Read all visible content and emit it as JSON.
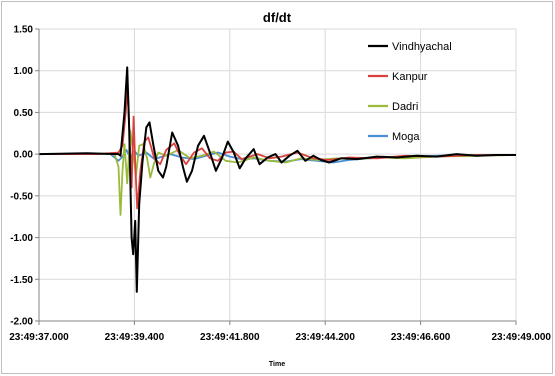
{
  "chart_data": {
    "type": "line",
    "title": "df/dt",
    "xlabel": "Time",
    "ylabel": "",
    "ylim": [
      -2.0,
      1.5
    ],
    "y_ticks": [
      "1.50",
      "1.00",
      "0.50",
      "0.00",
      "-0.50",
      "-1.00",
      "-1.50",
      "-2.00"
    ],
    "y_tick_values": [
      1.5,
      1.0,
      0.5,
      0.0,
      -0.5,
      -1.0,
      -1.5,
      -2.0
    ],
    "x_ticks": [
      "23:49:37.000",
      "23:49:39.400",
      "23:49:41.800",
      "23:49:44.200",
      "23:49:46.600",
      "23:49:49.000"
    ],
    "x_tick_values": [
      0,
      2.4,
      4.8,
      7.2,
      9.6,
      12.0
    ],
    "xlim": [
      0,
      12.0
    ],
    "grid": "horizontal",
    "legend_position": "right",
    "series": [
      {
        "name": "Vindhyachal",
        "color": "#000000",
        "points": [
          [
            0,
            0
          ],
          [
            1.2,
            0.01
          ],
          [
            2.0,
            0
          ],
          [
            2.05,
            -0.02
          ],
          [
            2.15,
            0.5
          ],
          [
            2.22,
            1.04
          ],
          [
            2.27,
            0.3
          ],
          [
            2.33,
            -1.0
          ],
          [
            2.37,
            -1.2
          ],
          [
            2.42,
            -0.8
          ],
          [
            2.46,
            -1.65
          ],
          [
            2.52,
            -0.6
          ],
          [
            2.6,
            -0.1
          ],
          [
            2.7,
            0.32
          ],
          [
            2.78,
            0.38
          ],
          [
            2.88,
            0.1
          ],
          [
            3.0,
            -0.2
          ],
          [
            3.12,
            -0.28
          ],
          [
            3.2,
            -0.15
          ],
          [
            3.35,
            0.26
          ],
          [
            3.5,
            0.1
          ],
          [
            3.62,
            -0.15
          ],
          [
            3.72,
            -0.33
          ],
          [
            3.85,
            -0.2
          ],
          [
            4.0,
            0.1
          ],
          [
            4.15,
            0.22
          ],
          [
            4.3,
            0.02
          ],
          [
            4.45,
            -0.2
          ],
          [
            4.6,
            -0.05
          ],
          [
            4.75,
            0.15
          ],
          [
            4.9,
            0.02
          ],
          [
            5.05,
            -0.17
          ],
          [
            5.2,
            -0.05
          ],
          [
            5.4,
            0.06
          ],
          [
            5.55,
            -0.12
          ],
          [
            5.75,
            -0.04
          ],
          [
            5.95,
            0.0
          ],
          [
            6.1,
            -0.1
          ],
          [
            6.3,
            -0.02
          ],
          [
            6.5,
            0.04
          ],
          [
            6.7,
            -0.08
          ],
          [
            6.9,
            -0.02
          ],
          [
            7.1,
            -0.07
          ],
          [
            7.3,
            -0.1
          ],
          [
            7.6,
            -0.05
          ],
          [
            8.0,
            -0.06
          ],
          [
            8.5,
            -0.03
          ],
          [
            9.0,
            -0.04
          ],
          [
            9.5,
            -0.02
          ],
          [
            10.0,
            -0.03
          ],
          [
            10.5,
            0.0
          ],
          [
            11.0,
            -0.02
          ],
          [
            11.5,
            -0.01
          ],
          [
            12.0,
            -0.01
          ]
        ]
      },
      {
        "name": "Kanpur",
        "color": "#d9413c",
        "points": [
          [
            0,
            0
          ],
          [
            1.5,
            0
          ],
          [
            2.0,
            0.02
          ],
          [
            2.1,
            0.1
          ],
          [
            2.18,
            0.5
          ],
          [
            2.23,
            0.8
          ],
          [
            2.28,
            0.2
          ],
          [
            2.33,
            -0.4
          ],
          [
            2.38,
            0.45
          ],
          [
            2.42,
            -0.1
          ],
          [
            2.47,
            -0.65
          ],
          [
            2.55,
            -0.2
          ],
          [
            2.65,
            0.15
          ],
          [
            2.75,
            0.2
          ],
          [
            2.9,
            -0.05
          ],
          [
            3.05,
            -0.12
          ],
          [
            3.2,
            0.05
          ],
          [
            3.4,
            0.13
          ],
          [
            3.55,
            -0.02
          ],
          [
            3.7,
            -0.12
          ],
          [
            3.9,
            0.02
          ],
          [
            4.1,
            0.07
          ],
          [
            4.3,
            -0.05
          ],
          [
            4.5,
            -0.08
          ],
          [
            4.7,
            0.02
          ],
          [
            4.9,
            0.03
          ],
          [
            5.1,
            -0.06
          ],
          [
            5.3,
            -0.03
          ],
          [
            5.5,
            0.0
          ],
          [
            5.8,
            -0.05
          ],
          [
            6.1,
            -0.03
          ],
          [
            6.5,
            0.02
          ],
          [
            6.9,
            -0.05
          ],
          [
            7.3,
            -0.07
          ],
          [
            7.8,
            -0.04
          ],
          [
            8.5,
            -0.05
          ],
          [
            9.2,
            -0.02
          ],
          [
            10.0,
            -0.03
          ],
          [
            11.0,
            -0.01
          ],
          [
            12.0,
            -0.01
          ]
        ]
      },
      {
        "name": "Dadri",
        "color": "#9bbb3b",
        "points": [
          [
            0,
            0
          ],
          [
            1.5,
            0
          ],
          [
            1.9,
            0
          ],
          [
            2.0,
            -0.15
          ],
          [
            2.05,
            -0.73
          ],
          [
            2.1,
            -0.2
          ],
          [
            2.15,
            0.12
          ],
          [
            2.22,
            -0.35
          ],
          [
            2.3,
            0.28
          ],
          [
            2.36,
            0.05
          ],
          [
            2.44,
            -0.25
          ],
          [
            2.52,
            0.1
          ],
          [
            2.62,
            0.12
          ],
          [
            2.72,
            -0.05
          ],
          [
            2.8,
            -0.28
          ],
          [
            2.9,
            -0.1
          ],
          [
            3.0,
            0.02
          ],
          [
            3.2,
            -0.02
          ],
          [
            3.5,
            0.05
          ],
          [
            3.8,
            -0.05
          ],
          [
            4.1,
            -0.02
          ],
          [
            4.4,
            0.03
          ],
          [
            4.7,
            -0.08
          ],
          [
            5.0,
            -0.1
          ],
          [
            5.4,
            -0.04
          ],
          [
            5.8,
            -0.08
          ],
          [
            6.2,
            -0.1
          ],
          [
            6.6,
            -0.05
          ],
          [
            7.0,
            -0.07
          ],
          [
            7.5,
            -0.05
          ],
          [
            8.0,
            -0.06
          ],
          [
            8.6,
            -0.04
          ],
          [
            9.2,
            -0.05
          ],
          [
            10.0,
            -0.03
          ],
          [
            11.0,
            -0.02
          ],
          [
            12.0,
            -0.01
          ]
        ]
      },
      {
        "name": "Moga",
        "color": "#4a8fd4",
        "points": [
          [
            0,
            0
          ],
          [
            1.8,
            0
          ],
          [
            2.0,
            -0.08
          ],
          [
            2.1,
            -0.03
          ],
          [
            2.2,
            0.05
          ],
          [
            2.3,
            -0.05
          ],
          [
            2.4,
            0.04
          ],
          [
            2.5,
            -0.02
          ],
          [
            2.7,
            0.02
          ],
          [
            2.9,
            -0.06
          ],
          [
            3.1,
            -0.03
          ],
          [
            3.3,
            0.0
          ],
          [
            3.6,
            -0.04
          ],
          [
            3.9,
            -0.06
          ],
          [
            4.2,
            -0.02
          ],
          [
            4.5,
            0.02
          ],
          [
            4.8,
            -0.03
          ],
          [
            5.1,
            -0.06
          ],
          [
            5.4,
            -0.05
          ],
          [
            5.8,
            -0.08
          ],
          [
            6.2,
            -0.09
          ],
          [
            6.6,
            -0.06
          ],
          [
            7.0,
            -0.08
          ],
          [
            7.4,
            -0.1
          ],
          [
            7.8,
            -0.07
          ],
          [
            8.3,
            -0.05
          ],
          [
            8.8,
            -0.04
          ],
          [
            9.4,
            -0.03
          ],
          [
            10.0,
            -0.02
          ],
          [
            11.0,
            -0.01
          ],
          [
            12.0,
            -0.01
          ]
        ]
      }
    ]
  }
}
